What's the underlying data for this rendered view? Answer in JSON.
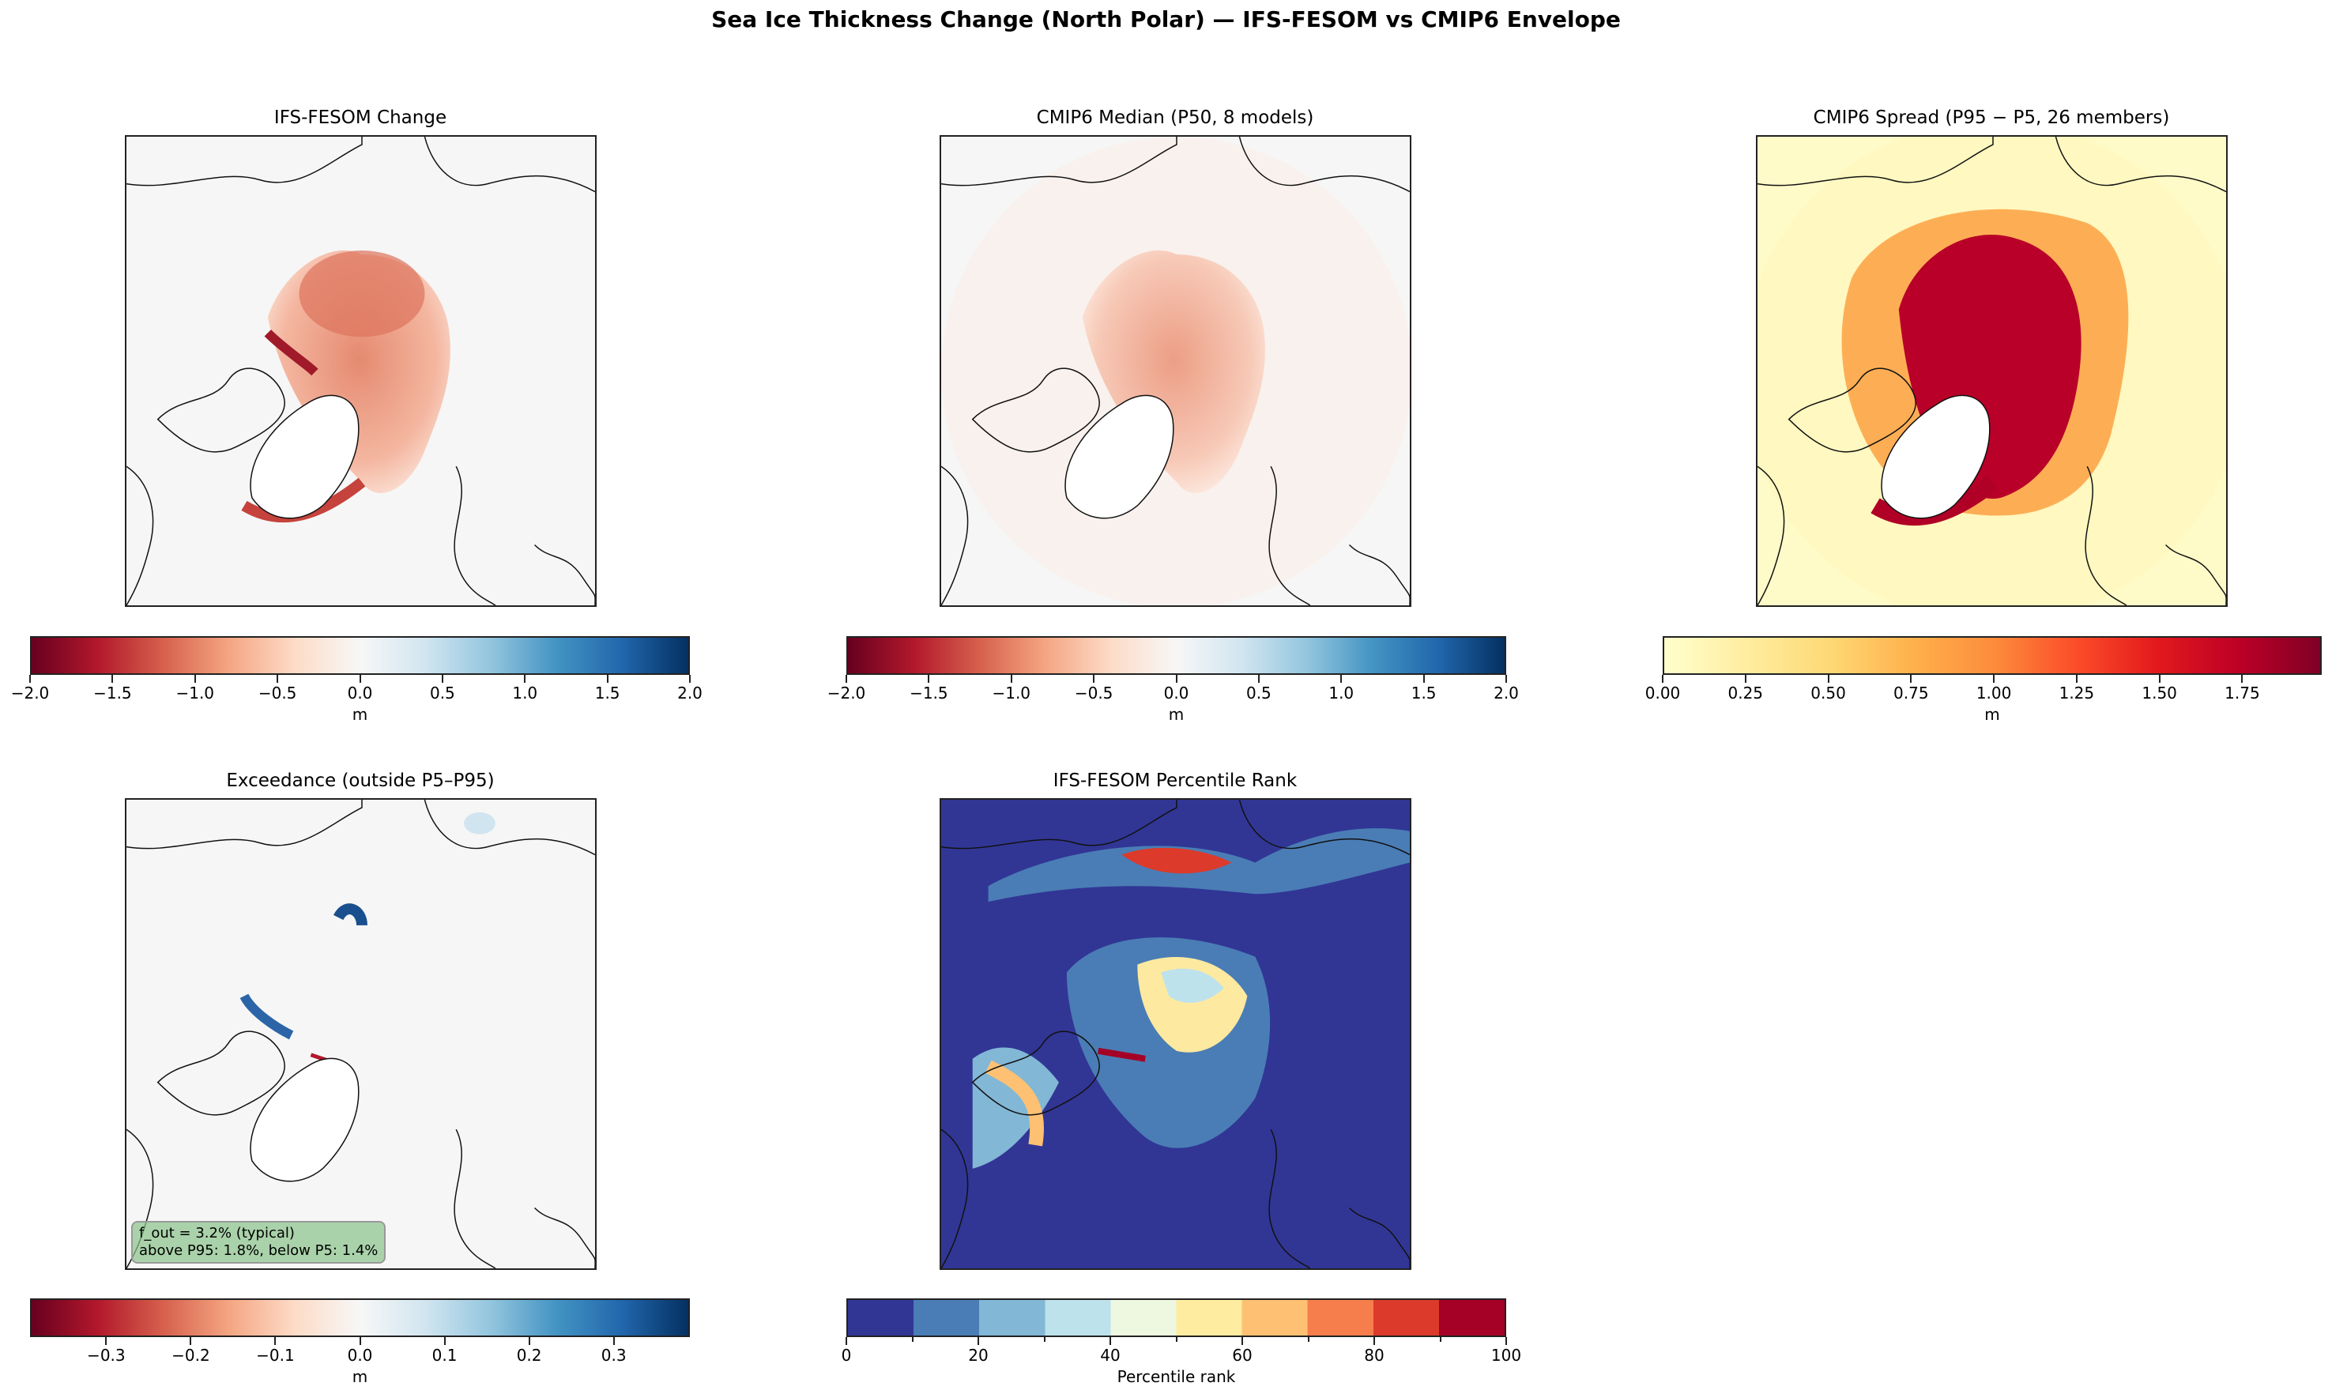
{
  "suptitle": "Sea Ice Thickness Change (North Polar) — IFS-FESOM vs CMIP6 Envelope",
  "chart_data": [
    {
      "type": "heatmap",
      "title": "IFS-FESOM Change",
      "colormap": "RdBu_r",
      "colorbar": {
        "range": [
          -2.0,
          2.0
        ],
        "ticks": [
          "−2.0",
          "−1.5",
          "−1.0",
          "−0.5",
          "0.0",
          "0.5",
          "1.0",
          "1.5",
          "2.0"
        ],
        "tick_values": [
          -2,
          -1.5,
          -1,
          -0.5,
          0,
          0.5,
          1,
          1.5,
          2
        ],
        "label": "m"
      },
      "projection": "north-polar-stereographic"
    },
    {
      "type": "heatmap",
      "title": "CMIP6 Median (P50, 8 models)",
      "colormap": "RdBu_r",
      "colorbar": {
        "range": [
          -2.0,
          2.0
        ],
        "ticks": [
          "−2.0",
          "−1.5",
          "−1.0",
          "−0.5",
          "0.0",
          "0.5",
          "1.0",
          "1.5",
          "2.0"
        ],
        "tick_values": [
          -2,
          -1.5,
          -1,
          -0.5,
          0,
          0.5,
          1,
          1.5,
          2
        ],
        "label": "m"
      },
      "projection": "north-polar-stereographic"
    },
    {
      "type": "heatmap",
      "title": "CMIP6 Spread (P95 − P5, 26 members)",
      "colormap": "YlOrRd",
      "colorbar": {
        "range": [
          0,
          1.99
        ],
        "ticks": [
          "0.00",
          "0.25",
          "0.50",
          "0.75",
          "1.00",
          "1.25",
          "1.50",
          "1.75"
        ],
        "tick_values": [
          0,
          0.25,
          0.5,
          0.75,
          1,
          1.25,
          1.5,
          1.75
        ],
        "label": "m"
      },
      "projection": "north-polar-stereographic"
    },
    {
      "type": "heatmap",
      "title": "Exceedance (outside P5–P95)",
      "colormap": "RdBu_r",
      "colorbar": {
        "range": [
          -0.39,
          0.39
        ],
        "ticks": [
          "−0.3",
          "−0.2",
          "−0.1",
          "0.0",
          "0.1",
          "0.2",
          "0.3"
        ],
        "tick_values": [
          -0.3,
          -0.2,
          -0.1,
          0,
          0.1,
          0.2,
          0.3
        ],
        "label": "m"
      },
      "annotation": [
        "f_out = 3.2% (typical)",
        "above P95: 1.8%, below P5: 1.4%"
      ],
      "projection": "north-polar-stereographic"
    },
    {
      "type": "heatmap",
      "title": "IFS-FESOM Percentile Rank",
      "colormap": "RdYlBu_r",
      "discrete_bins": [
        0,
        10,
        20,
        30,
        40,
        50,
        60,
        70,
        80,
        90,
        100
      ],
      "bin_colors": [
        "#313695",
        "#4a7db5",
        "#82b7d6",
        "#bde2ec",
        "#eef7e0",
        "#feeca0",
        "#fec173",
        "#f57e4c",
        "#dc3a2b",
        "#a50026"
      ],
      "colorbar": {
        "range": [
          0,
          100
        ],
        "ticks": [
          "0",
          "20",
          "40",
          "60",
          "80",
          "100"
        ],
        "tick_values": [
          0,
          20,
          40,
          60,
          80,
          100
        ],
        "minor_tick_values": [
          10,
          30,
          50,
          70,
          90
        ],
        "label": "Percentile rank"
      },
      "projection": "north-polar-stereographic"
    }
  ]
}
